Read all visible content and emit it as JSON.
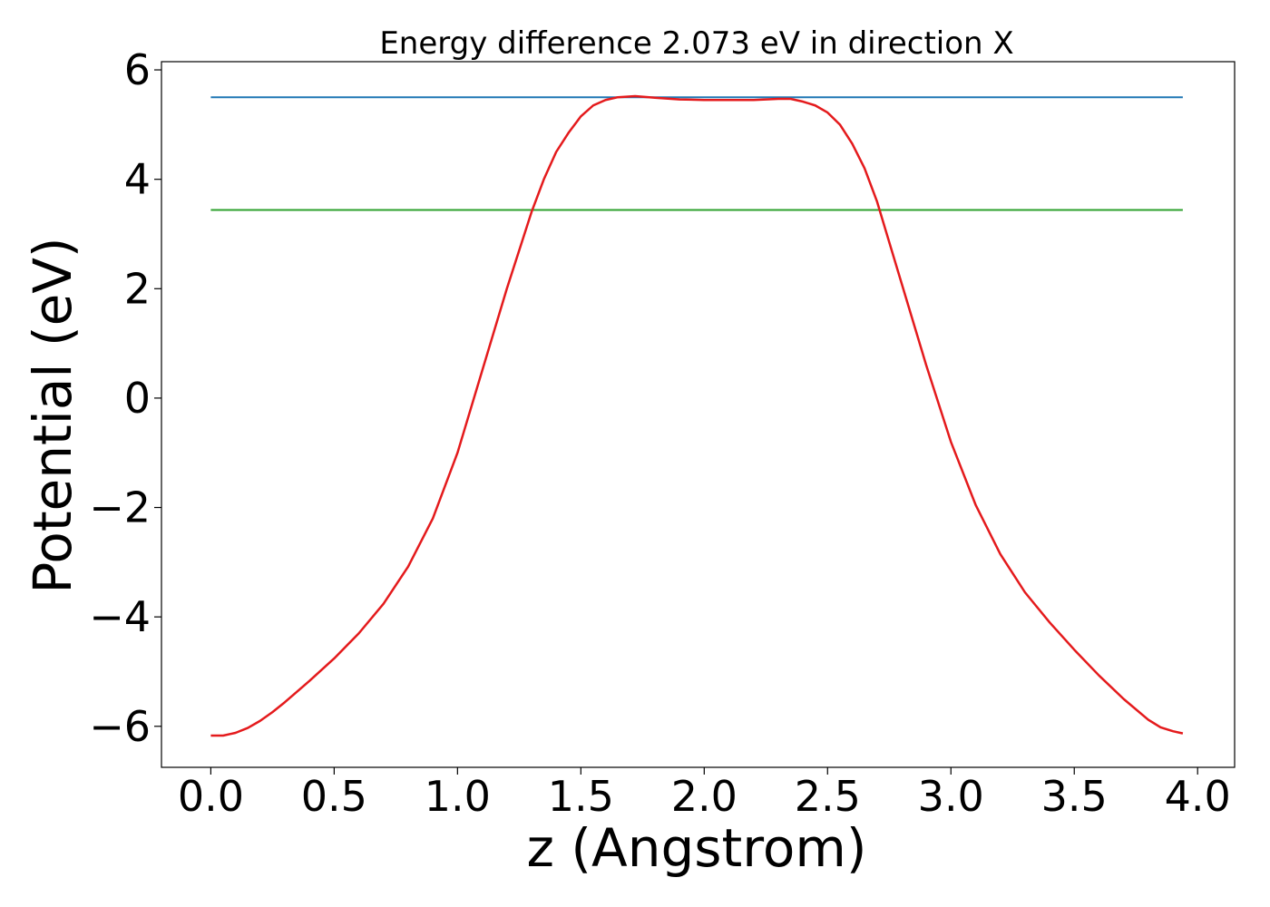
{
  "chart_data": {
    "type": "line",
    "title": "Energy difference 2.073 eV in direction X",
    "xlabel": "z (Angstrom)",
    "ylabel": "Potential (eV)",
    "xlim": [
      -0.2,
      4.15
    ],
    "ylim": [
      -6.75,
      6.15
    ],
    "xticks": [
      0.0,
      0.5,
      1.0,
      1.5,
      2.0,
      2.5,
      3.0,
      3.5,
      4.0
    ],
    "xtick_labels": [
      "0.0",
      "0.5",
      "1.0",
      "1.5",
      "2.0",
      "2.5",
      "3.0",
      "3.5",
      "4.0"
    ],
    "yticks": [
      -6,
      -4,
      -2,
      0,
      2,
      4,
      6
    ],
    "ytick_labels": [
      "−6",
      "−4",
      "−2",
      "0",
      "2",
      "4",
      "6"
    ],
    "grid": false,
    "legend": "none",
    "series": [
      {
        "color": "#1f77b4",
        "x": [
          0.0,
          3.94
        ],
        "y": [
          5.5,
          5.5
        ]
      },
      {
        "color": "#2ca02c",
        "x": [
          0.0,
          3.94
        ],
        "y": [
          3.44,
          3.44
        ]
      },
      {
        "color": "#e41a1c",
        "x": [
          0.0,
          0.05,
          0.1,
          0.15,
          0.2,
          0.25,
          0.3,
          0.4,
          0.5,
          0.6,
          0.7,
          0.8,
          0.9,
          1.0,
          1.1,
          1.2,
          1.3,
          1.35,
          1.4,
          1.45,
          1.5,
          1.55,
          1.6,
          1.65,
          1.72,
          1.8,
          1.9,
          2.0,
          2.1,
          2.2,
          2.3,
          2.35,
          2.4,
          2.45,
          2.5,
          2.55,
          2.6,
          2.65,
          2.7,
          2.8,
          2.9,
          3.0,
          3.1,
          3.2,
          3.3,
          3.4,
          3.5,
          3.6,
          3.7,
          3.8,
          3.85,
          3.9,
          3.94
        ],
        "y": [
          -6.17,
          -6.17,
          -6.12,
          -6.03,
          -5.9,
          -5.74,
          -5.56,
          -5.17,
          -4.76,
          -4.3,
          -3.76,
          -3.08,
          -2.2,
          -1.0,
          0.5,
          2.0,
          3.4,
          4.0,
          4.5,
          4.85,
          5.15,
          5.35,
          5.45,
          5.5,
          5.52,
          5.49,
          5.46,
          5.45,
          5.45,
          5.45,
          5.47,
          5.47,
          5.42,
          5.35,
          5.22,
          5.0,
          4.65,
          4.2,
          3.6,
          2.1,
          0.6,
          -0.8,
          -1.95,
          -2.85,
          -3.55,
          -4.1,
          -4.6,
          -5.07,
          -5.5,
          -5.88,
          -6.02,
          -6.09,
          -6.13
        ]
      }
    ]
  }
}
